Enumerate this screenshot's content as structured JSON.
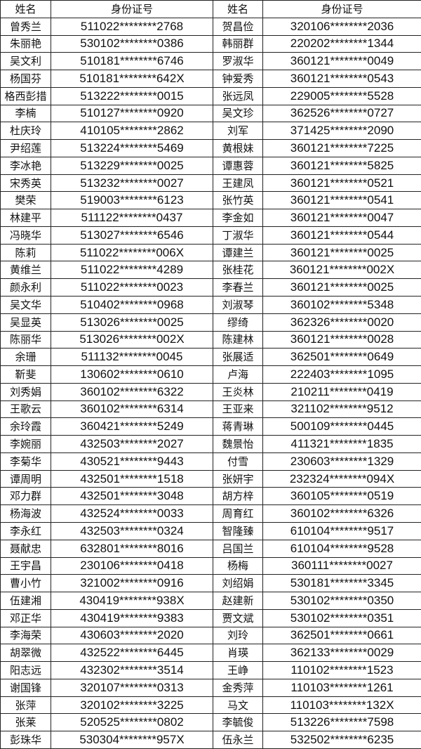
{
  "headers": [
    "姓名",
    "身份证号",
    "姓名",
    "身份证号"
  ],
  "rows": [
    [
      "曾秀兰",
      "511022********2768",
      "贺昌俭",
      "320106********2036"
    ],
    [
      "朱丽艳",
      "530102********0386",
      "韩丽群",
      "220202********1344"
    ],
    [
      "吴文利",
      "510181********6746",
      "罗淑华",
      "360121********0049"
    ],
    [
      "杨国芬",
      "510181********642X",
      "钟爱秀",
      "360121********0543"
    ],
    [
      "格西彭措",
      "513222********0015",
      "张远凤",
      "229005********5528"
    ],
    [
      "李楠",
      "510127********0920",
      "吴文珍",
      "362526********0727"
    ],
    [
      "杜庆玲",
      "410105********2862",
      "刘军",
      "371425********2090"
    ],
    [
      "尹绍莲",
      "513224********5469",
      "黄根妹",
      "360121********7225"
    ],
    [
      "李冰艳",
      "513229********0025",
      "谭惠蓉",
      "360121********5825"
    ],
    [
      "宋秀英",
      "513232********0027",
      "王建凤",
      "360121********0521"
    ],
    [
      "樊荣",
      "519003********6123",
      "张竹英",
      "360121********0541"
    ],
    [
      "林建平",
      "511122********0437",
      "李金如",
      "360121********0047"
    ],
    [
      "冯晓华",
      "513027********6546",
      "丁淑华",
      "360121********0544"
    ],
    [
      "陈莉",
      "511022********006X",
      "谭建兰",
      "360121********0025"
    ],
    [
      "黄维兰",
      "511022********4289",
      "张桂花",
      "360121********002X"
    ],
    [
      "颜永利",
      "511022********0023",
      "李春兰",
      "360121********0025"
    ],
    [
      "吴文华",
      "510402********0968",
      "刘淑琴",
      "360102********5348"
    ],
    [
      "吴显英",
      "513026********0025",
      "缪绮",
      "362326********0020"
    ],
    [
      "陈丽华",
      "513026********002X",
      "陈建林",
      "360121********0028"
    ],
    [
      "余珊",
      "511132********0045",
      "张展适",
      "362501********0649"
    ],
    [
      "靳斐",
      "130602********0610",
      "卢海",
      "222403********1095"
    ],
    [
      "刘秀娟",
      "360102********6322",
      "王炎林",
      "210211********0419"
    ],
    [
      "王歌云",
      "360102********6314",
      "王亚来",
      "321102********9512"
    ],
    [
      "余玲霞",
      "360421********5249",
      "蒋青琳",
      "500109********0445"
    ],
    [
      "李婉丽",
      "432503********2027",
      "魏景怡",
      "411321********1835"
    ],
    [
      "李菊华",
      "430521********9443",
      "付雪",
      "230603********1329"
    ],
    [
      "谭周明",
      "432501********1518",
      "张妍宇",
      "232324********094X"
    ],
    [
      "邓力群",
      "432501********3048",
      "胡方梓",
      "360105********0519"
    ],
    [
      "杨海波",
      "432524********0033",
      "周育红",
      "360102********6326"
    ],
    [
      "李永红",
      "432503********0324",
      "智隆臻",
      "610104********9517"
    ],
    [
      "聂献忠",
      "632801********8016",
      "吕国兰",
      "610104********9528"
    ],
    [
      "王宇昌",
      "230106********0418",
      "杨梅",
      "360111********0027"
    ],
    [
      "曹小竹",
      "321002********0916",
      "刘绍娟",
      "530181********3345"
    ],
    [
      "伍建湘",
      "430419********938X",
      "赵建新",
      "530102********0350"
    ],
    [
      "邓正华",
      "430419********9383",
      "贾文斌",
      "530102********0351"
    ],
    [
      "李海荣",
      "430603********2020",
      "刘玲",
      "362501********0661"
    ],
    [
      "胡翠微",
      "432522********6445",
      "肖瑛",
      "362133********0029"
    ],
    [
      "阳志远",
      "432302********3514",
      "王峥",
      "110102********1523"
    ],
    [
      "谢国锋",
      "320107********0313",
      "金秀萍",
      "110103********1261"
    ],
    [
      "张萍",
      "320102********3225",
      "马文",
      "110103********132X"
    ],
    [
      "张莱",
      "520525********0802",
      "李毓俊",
      "513226********7598"
    ],
    [
      "彭珠华",
      "530304********957X",
      "伍永兰",
      "532502********6235"
    ]
  ]
}
